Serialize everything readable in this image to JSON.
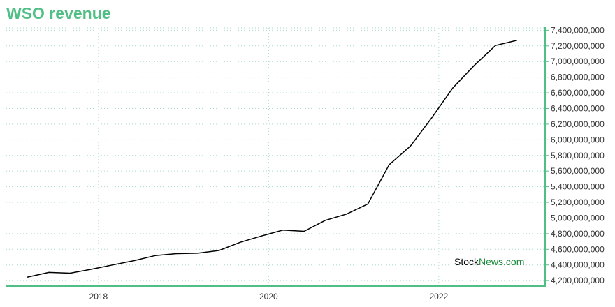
{
  "title": "WSO revenue",
  "brand": {
    "part1": "Stock",
    "part2": "News",
    "part3": ".com"
  },
  "colors": {
    "accent": "#4fbf85",
    "line": "#000000",
    "grid": "#a8dcc4",
    "brand_dark": "#000000",
    "brand_green": "#1a8a3c"
  },
  "chart_data": {
    "type": "line",
    "title": "WSO revenue",
    "xlabel": "",
    "ylabel": "",
    "x_ticks": [
      "2018",
      "2020",
      "2022"
    ],
    "y_ticks": [
      4200000000,
      4400000000,
      4600000000,
      4800000000,
      5000000000,
      5200000000,
      5400000000,
      5600000000,
      5800000000,
      6000000000,
      6200000000,
      6400000000,
      6600000000,
      6800000000,
      7000000000,
      7200000000,
      7400000000
    ],
    "y_tick_labels": [
      "4,200,000,000",
      "4,400,000,000",
      "4,600,000,000",
      "4,800,000,000",
      "5,000,000,000",
      "5,200,000,000",
      "5,400,000,000",
      "5,600,000,000",
      "5,800,000,000",
      "6,000,000,000",
      "6,200,000,000",
      "6,400,000,000",
      "6,600,000,000",
      "6,800,000,000",
      "7,000,000,000",
      "7,200,000,000",
      "7,400,000,000"
    ],
    "xlim": [
      "2016-12",
      "2023-04"
    ],
    "ylim": [
      4130000000,
      7430000000
    ],
    "grid": true,
    "y_axis_side": "right",
    "series": [
      {
        "points": [
          [
            "2017-03",
            4245000000
          ],
          [
            "2017-06",
            4305000000
          ],
          [
            "2017-09",
            4295000000
          ],
          [
            "2017-12",
            4345000000
          ],
          [
            "2018-03",
            4400000000
          ],
          [
            "2018-06",
            4455000000
          ],
          [
            "2018-09",
            4520000000
          ],
          [
            "2018-12",
            4545000000
          ],
          [
            "2019-03",
            4550000000
          ],
          [
            "2019-06",
            4585000000
          ],
          [
            "2019-09",
            4690000000
          ],
          [
            "2019-12",
            4770000000
          ],
          [
            "2020-03",
            4845000000
          ],
          [
            "2020-06",
            4830000000
          ],
          [
            "2020-09",
            4970000000
          ],
          [
            "2020-12",
            5050000000
          ],
          [
            "2021-03",
            5180000000
          ],
          [
            "2021-06",
            5680000000
          ],
          [
            "2021-09",
            5920000000
          ],
          [
            "2021-12",
            6280000000
          ],
          [
            "2022-03",
            6665000000
          ],
          [
            "2022-06",
            6950000000
          ],
          [
            "2022-09",
            7205000000
          ],
          [
            "2022-12",
            7270000000
          ]
        ]
      }
    ]
  }
}
